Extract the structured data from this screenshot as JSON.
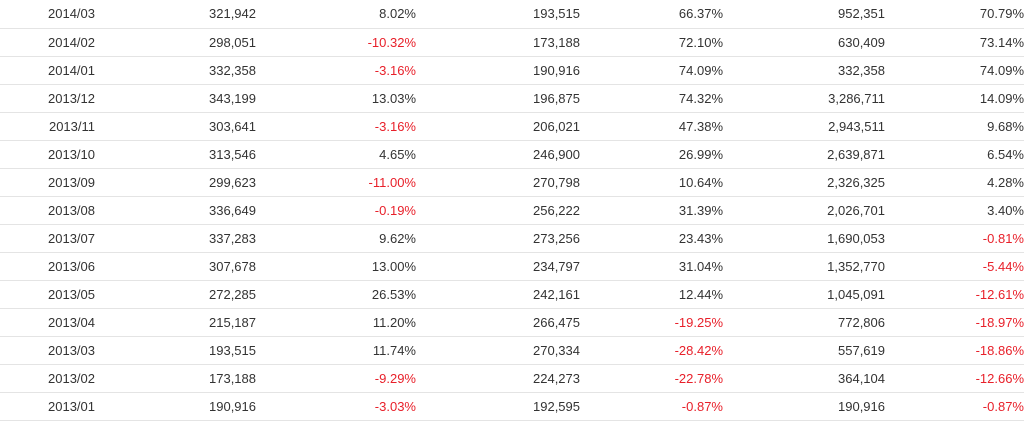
{
  "colors": {
    "text": "#333333",
    "negative": "#e8202a",
    "row_border": "#e4e4e4"
  },
  "rows": [
    {
      "period": "2014/03",
      "v1": "321,942",
      "p1": "8.02%",
      "v2": "193,515",
      "p2": "66.37%",
      "v3": "952,351",
      "p3": "70.79%"
    },
    {
      "period": "2014/02",
      "v1": "298,051",
      "p1": "-10.32%",
      "v2": "173,188",
      "p2": "72.10%",
      "v3": "630,409",
      "p3": "73.14%"
    },
    {
      "period": "2014/01",
      "v1": "332,358",
      "p1": "-3.16%",
      "v2": "190,916",
      "p2": "74.09%",
      "v3": "332,358",
      "p3": "74.09%"
    },
    {
      "period": "2013/12",
      "v1": "343,199",
      "p1": "13.03%",
      "v2": "196,875",
      "p2": "74.32%",
      "v3": "3,286,711",
      "p3": "14.09%"
    },
    {
      "period": "2013/11",
      "v1": "303,641",
      "p1": "-3.16%",
      "v2": "206,021",
      "p2": "47.38%",
      "v3": "2,943,511",
      "p3": "9.68%"
    },
    {
      "period": "2013/10",
      "v1": "313,546",
      "p1": "4.65%",
      "v2": "246,900",
      "p2": "26.99%",
      "v3": "2,639,871",
      "p3": "6.54%"
    },
    {
      "period": "2013/09",
      "v1": "299,623",
      "p1": "-11.00%",
      "v2": "270,798",
      "p2": "10.64%",
      "v3": "2,326,325",
      "p3": "4.28%"
    },
    {
      "period": "2013/08",
      "v1": "336,649",
      "p1": "-0.19%",
      "v2": "256,222",
      "p2": "31.39%",
      "v3": "2,026,701",
      "p3": "3.40%"
    },
    {
      "period": "2013/07",
      "v1": "337,283",
      "p1": "9.62%",
      "v2": "273,256",
      "p2": "23.43%",
      "v3": "1,690,053",
      "p3": "-0.81%"
    },
    {
      "period": "2013/06",
      "v1": "307,678",
      "p1": "13.00%",
      "v2": "234,797",
      "p2": "31.04%",
      "v3": "1,352,770",
      "p3": "-5.44%"
    },
    {
      "period": "2013/05",
      "v1": "272,285",
      "p1": "26.53%",
      "v2": "242,161",
      "p2": "12.44%",
      "v3": "1,045,091",
      "p3": "-12.61%"
    },
    {
      "period": "2013/04",
      "v1": "215,187",
      "p1": "11.20%",
      "v2": "266,475",
      "p2": "-19.25%",
      "v3": "772,806",
      "p3": "-18.97%"
    },
    {
      "period": "2013/03",
      "v1": "193,515",
      "p1": "11.74%",
      "v2": "270,334",
      "p2": "-28.42%",
      "v3": "557,619",
      "p3": "-18.86%"
    },
    {
      "period": "2013/02",
      "v1": "173,188",
      "p1": "-9.29%",
      "v2": "224,273",
      "p2": "-22.78%",
      "v3": "364,104",
      "p3": "-12.66%"
    },
    {
      "period": "2013/01",
      "v1": "190,916",
      "p1": "-3.03%",
      "v2": "192,595",
      "p2": "-0.87%",
      "v3": "190,916",
      "p3": "-0.87%"
    }
  ]
}
